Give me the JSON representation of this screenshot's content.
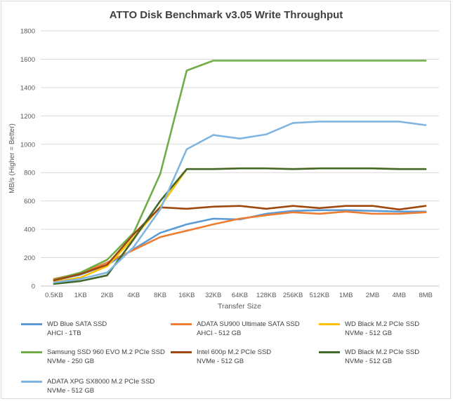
{
  "chart_data": {
    "type": "line",
    "title": "ATTO Disk Benchmark v3.05 Write Throughput",
    "xlabel": "Transfer Size",
    "ylabel": "MB/s (Higher = Better)",
    "ylim": [
      0,
      1800
    ],
    "yticks": [
      0,
      200,
      400,
      600,
      800,
      1000,
      1200,
      1400,
      1600,
      1800
    ],
    "grid": true,
    "legend_position": "bottom",
    "categories": [
      "0.5KB",
      "1KB",
      "2KB",
      "4KB",
      "8KB",
      "16KB",
      "32KB",
      "64KB",
      "128KB",
      "256KB",
      "512KB",
      "1MB",
      "2MB",
      "4MB",
      "8MB"
    ],
    "series": [
      {
        "name": "WD Blue SATA SSD",
        "subname": "AHCI - 1TB",
        "color": "#5b9bd5",
        "values": [
          40,
          80,
          150,
          260,
          375,
          435,
          475,
          470,
          510,
          530,
          535,
          535,
          530,
          525,
          525
        ]
      },
      {
        "name": "ADATA SU900 Ultimate SATA SSD",
        "subname": "AHCI - 512 GB",
        "color": "#ed7d31",
        "values": [
          50,
          90,
          165,
          255,
          345,
          390,
          435,
          475,
          500,
          520,
          510,
          525,
          510,
          510,
          520
        ]
      },
      {
        "name": "WD Black M.2 PCIe SSD",
        "subname": "NVMe - 512 GB",
        "color": "#ffc000",
        "values": [
          30,
          60,
          140,
          340,
          560,
          825,
          825,
          830,
          830,
          825,
          830,
          830,
          830,
          825,
          825
        ]
      },
      {
        "name": "Samsung SSD 960 EVO M.2 PCIe SSD",
        "subname": "NVMe - 250 GB",
        "color": "#70ad47",
        "values": [
          45,
          95,
          185,
          375,
          790,
          1520,
          1590,
          1590,
          1590,
          1590,
          1590,
          1590,
          1590,
          1590,
          1590
        ]
      },
      {
        "name": "Intel 600p M.2 PCIe SSD",
        "subname": "NVMe - 512 GB",
        "color": "#9e480e",
        "values": [
          40,
          85,
          150,
          365,
          555,
          545,
          560,
          565,
          545,
          565,
          550,
          565,
          565,
          540,
          565
        ]
      },
      {
        "name": "WD Black M.2 PCIe SSD",
        "subname": "NVMe - 512 GB",
        "color": "#43682b",
        "values": [
          15,
          35,
          75,
          330,
          600,
          825,
          825,
          830,
          830,
          825,
          830,
          830,
          830,
          825,
          825
        ]
      },
      {
        "name": "ADATA XPG SX8000 M.2 PCIe SSD",
        "subname": "NVMe - 512 GB",
        "color": "#7fb5e0",
        "values": [
          25,
          50,
          95,
          275,
          540,
          965,
          1065,
          1040,
          1070,
          1150,
          1160,
          1160,
          1160,
          1160,
          1135
        ]
      }
    ]
  }
}
